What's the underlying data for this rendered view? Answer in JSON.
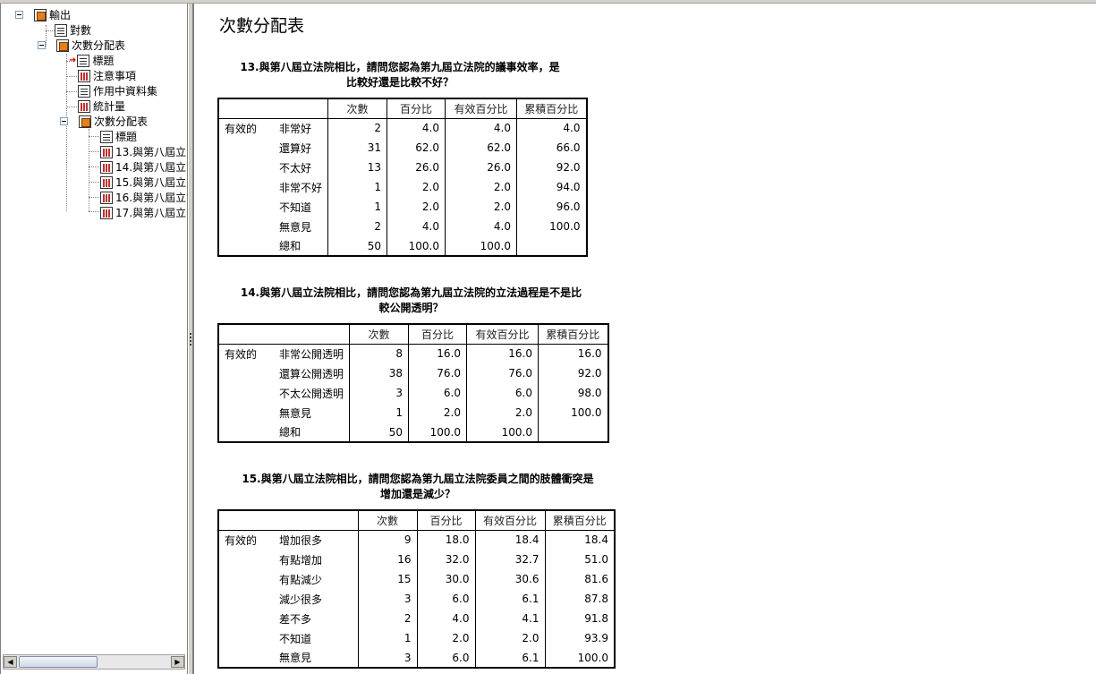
{
  "tree": {
    "root": "輸出",
    "log": "對數",
    "freq1": "次數分配表",
    "title1": "標題",
    "notes": "注意事項",
    "dataset": "作用中資料集",
    "stats": "統計量",
    "freq2": "次數分配表",
    "title2": "標題",
    "items": [
      "13.與第八屆立",
      "14.與第八屆立",
      "15.與第八屆立",
      "16.與第八屆立",
      "17.與第八屆立"
    ]
  },
  "page_title": "次數分配表",
  "headers": {
    "c1": "次數",
    "c2": "百分比",
    "c3": "有效百分比",
    "c4": "累積百分比"
  },
  "valid_label": "有效的",
  "tables": [
    {
      "title1": "13.與第八屆立法院相比，請問您認為第九屆立法院的議事效率，是",
      "title2": "比較好還是比較不好？",
      "rows": [
        {
          "label": "非常好",
          "n": "2",
          "p": "4.0",
          "vp": "4.0",
          "cp": "4.0"
        },
        {
          "label": "還算好",
          "n": "31",
          "p": "62.0",
          "vp": "62.0",
          "cp": "66.0"
        },
        {
          "label": "不太好",
          "n": "13",
          "p": "26.0",
          "vp": "26.0",
          "cp": "92.0"
        },
        {
          "label": "非常不好",
          "n": "1",
          "p": "2.0",
          "vp": "2.0",
          "cp": "94.0"
        },
        {
          "label": "不知道",
          "n": "1",
          "p": "2.0",
          "vp": "2.0",
          "cp": "96.0"
        },
        {
          "label": "無意見",
          "n": "2",
          "p": "4.0",
          "vp": "4.0",
          "cp": "100.0"
        },
        {
          "label": "總和",
          "n": "50",
          "p": "100.0",
          "vp": "100.0",
          "cp": ""
        }
      ]
    },
    {
      "title1": "14.與第八屆立法院相比，請問您認為第九屆立法院的立法過程是不是比",
      "title2": "較公開透明？",
      "rows": [
        {
          "label": "非常公開透明",
          "n": "8",
          "p": "16.0",
          "vp": "16.0",
          "cp": "16.0"
        },
        {
          "label": "還算公開透明",
          "n": "38",
          "p": "76.0",
          "vp": "76.0",
          "cp": "92.0"
        },
        {
          "label": "不太公開透明",
          "n": "3",
          "p": "6.0",
          "vp": "6.0",
          "cp": "98.0"
        },
        {
          "label": "無意見",
          "n": "1",
          "p": "2.0",
          "vp": "2.0",
          "cp": "100.0"
        },
        {
          "label": "總和",
          "n": "50",
          "p": "100.0",
          "vp": "100.0",
          "cp": ""
        }
      ]
    },
    {
      "title1": "15.與第八屆立法院相比，請問您認為第九屆立法院委員之間的肢體衝突是",
      "title2": "增加還是減少？",
      "rows": [
        {
          "label": "增加很多",
          "n": "9",
          "p": "18.0",
          "vp": "18.4",
          "cp": "18.4"
        },
        {
          "label": "有點增加",
          "n": "16",
          "p": "32.0",
          "vp": "32.7",
          "cp": "51.0"
        },
        {
          "label": "有點減少",
          "n": "15",
          "p": "30.0",
          "vp": "30.6",
          "cp": "81.6"
        },
        {
          "label": "減少很多",
          "n": "3",
          "p": "6.0",
          "vp": "6.1",
          "cp": "87.8"
        },
        {
          "label": "差不多",
          "n": "2",
          "p": "4.0",
          "vp": "4.1",
          "cp": "91.8"
        },
        {
          "label": "不知道",
          "n": "1",
          "p": "2.0",
          "vp": "2.0",
          "cp": "93.9"
        },
        {
          "label": "無意見",
          "n": "3",
          "p": "6.0",
          "vp": "6.1",
          "cp": "100.0"
        }
      ]
    }
  ]
}
